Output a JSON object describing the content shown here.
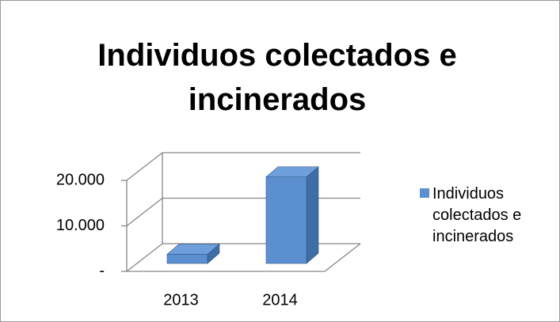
{
  "chart_data": {
    "type": "bar3d",
    "title": "Individuos colectados e incinerados",
    "categories": [
      "2013",
      "2014"
    ],
    "series": [
      {
        "name": "Individuos colectados e incinerados",
        "color": "#5b8fd0",
        "values": [
          2000,
          19000
        ]
      }
    ],
    "ylim": [
      0,
      20000
    ],
    "yticks": [
      {
        "value": 0,
        "label": "-"
      },
      {
        "value": 10000,
        "label": "10.000"
      },
      {
        "value": 20000,
        "label": "20.000"
      }
    ],
    "grid": true,
    "legend": "right"
  }
}
